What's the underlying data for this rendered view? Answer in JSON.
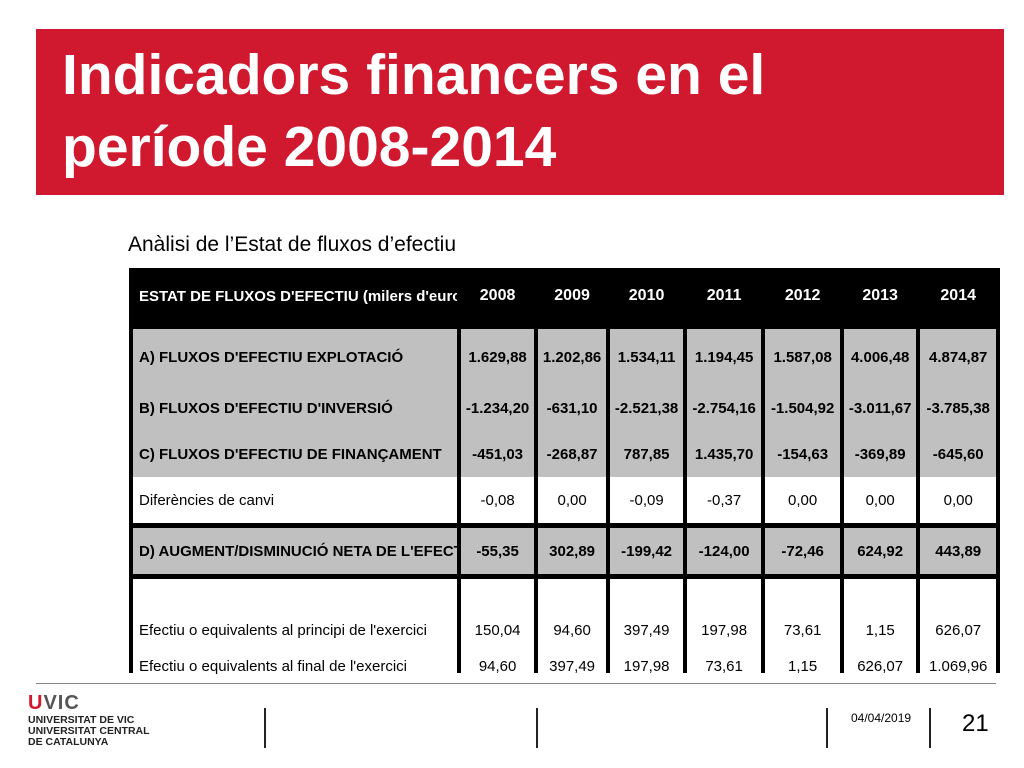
{
  "slide": {
    "title": "Indicadors financers en el període 2008-2014",
    "subtitle": "Anàlisi de l’Estat de fluxos d’efectiu"
  },
  "table": {
    "header_label": "ESTAT DE FLUXOS D'EFECTIU (milers d'euros)",
    "years": [
      "2008",
      "2009",
      "2010",
      "2011",
      "2012",
      "2013",
      "2014"
    ],
    "rows": [
      {
        "label": "A) FLUXOS D'EFECTIU EXPLOTACIÓ",
        "values": [
          "1.629,88",
          "1.202,86",
          "1.534,11",
          "1.194,45",
          "1.587,08",
          "4.006,48",
          "4.874,87"
        ]
      },
      {
        "label": "B) FLUXOS D'EFECTIU D'INVERSIÓ",
        "values": [
          "-1.234,20",
          "-631,10",
          "-2.521,38",
          "-2.754,16",
          "-1.504,92",
          "-3.011,67",
          "-3.785,38"
        ]
      },
      {
        "label": "C) FLUXOS D'EFECTIU DE FINANÇAMENT",
        "values": [
          "-451,03",
          "-268,87",
          "787,85",
          "1.435,70",
          "-154,63",
          "-369,89",
          "-645,60"
        ]
      },
      {
        "label": "Diferències de canvi",
        "values": [
          "-0,08",
          "0,00",
          "-0,09",
          "-0,37",
          "0,00",
          "0,00",
          "0,00"
        ]
      },
      {
        "label": "D) AUGMENT/DISMINUCIÓ NETA DE L'EFECTIU",
        "values": [
          "-55,35",
          "302,89",
          "-199,42",
          "-124,00",
          "-72,46",
          "624,92",
          "443,89"
        ]
      },
      {
        "label": "Efectiu o equivalents al principi de l'exercici",
        "values": [
          "150,04",
          "94,60",
          "397,49",
          "197,98",
          "73,61",
          "1,15",
          "626,07"
        ]
      },
      {
        "label": "Efectiu o equivalents al final de l'exercici",
        "values": [
          "94,60",
          "397,49",
          "197,98",
          "73,61",
          "1,15",
          "626,07",
          "1.069,96"
        ]
      }
    ]
  },
  "footer": {
    "logo_u": "U",
    "logo_vic": "VIC",
    "logo_lines": [
      "UNIVERSITAT DE VIC",
      "UNIVERSITAT CENTRAL",
      "DE CATALUNYA"
    ],
    "date": "04/04/2019",
    "page_number": "21"
  },
  "colors": {
    "accent_red": "#d0182f",
    "table_grey": "#c0c0c0"
  }
}
